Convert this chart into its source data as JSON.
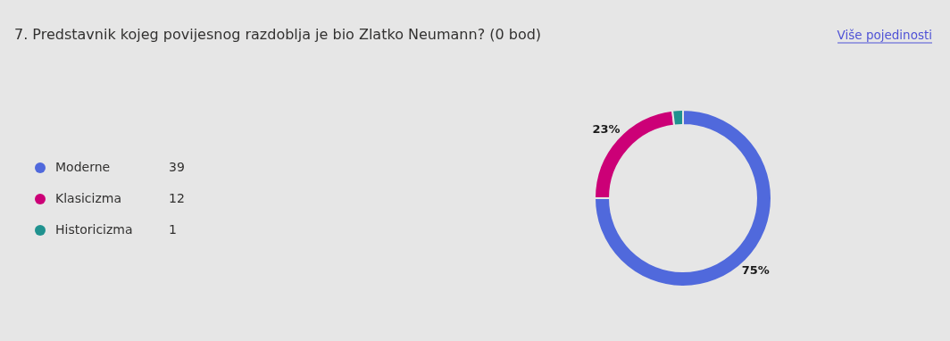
{
  "chart_data": {
    "type": "donut",
    "title": "7. Predstavnik kojeg povijesnog razdoblja je bio Zlatko Neumann? (0 bod)",
    "categories": [
      "Moderne",
      "Klasicizma",
      "Historicizma"
    ],
    "values": [
      39,
      12,
      1
    ],
    "colors": [
      "#5069dc",
      "#cc0077",
      "#20928f"
    ],
    "legend": "left",
    "data_labels": true,
    "annotations": [
      "Više pojedinosti",
      {
        "text": "75%",
        "x": "Moderne"
      },
      {
        "text": "23%",
        "x": "Klasicizma"
      }
    ]
  }
}
